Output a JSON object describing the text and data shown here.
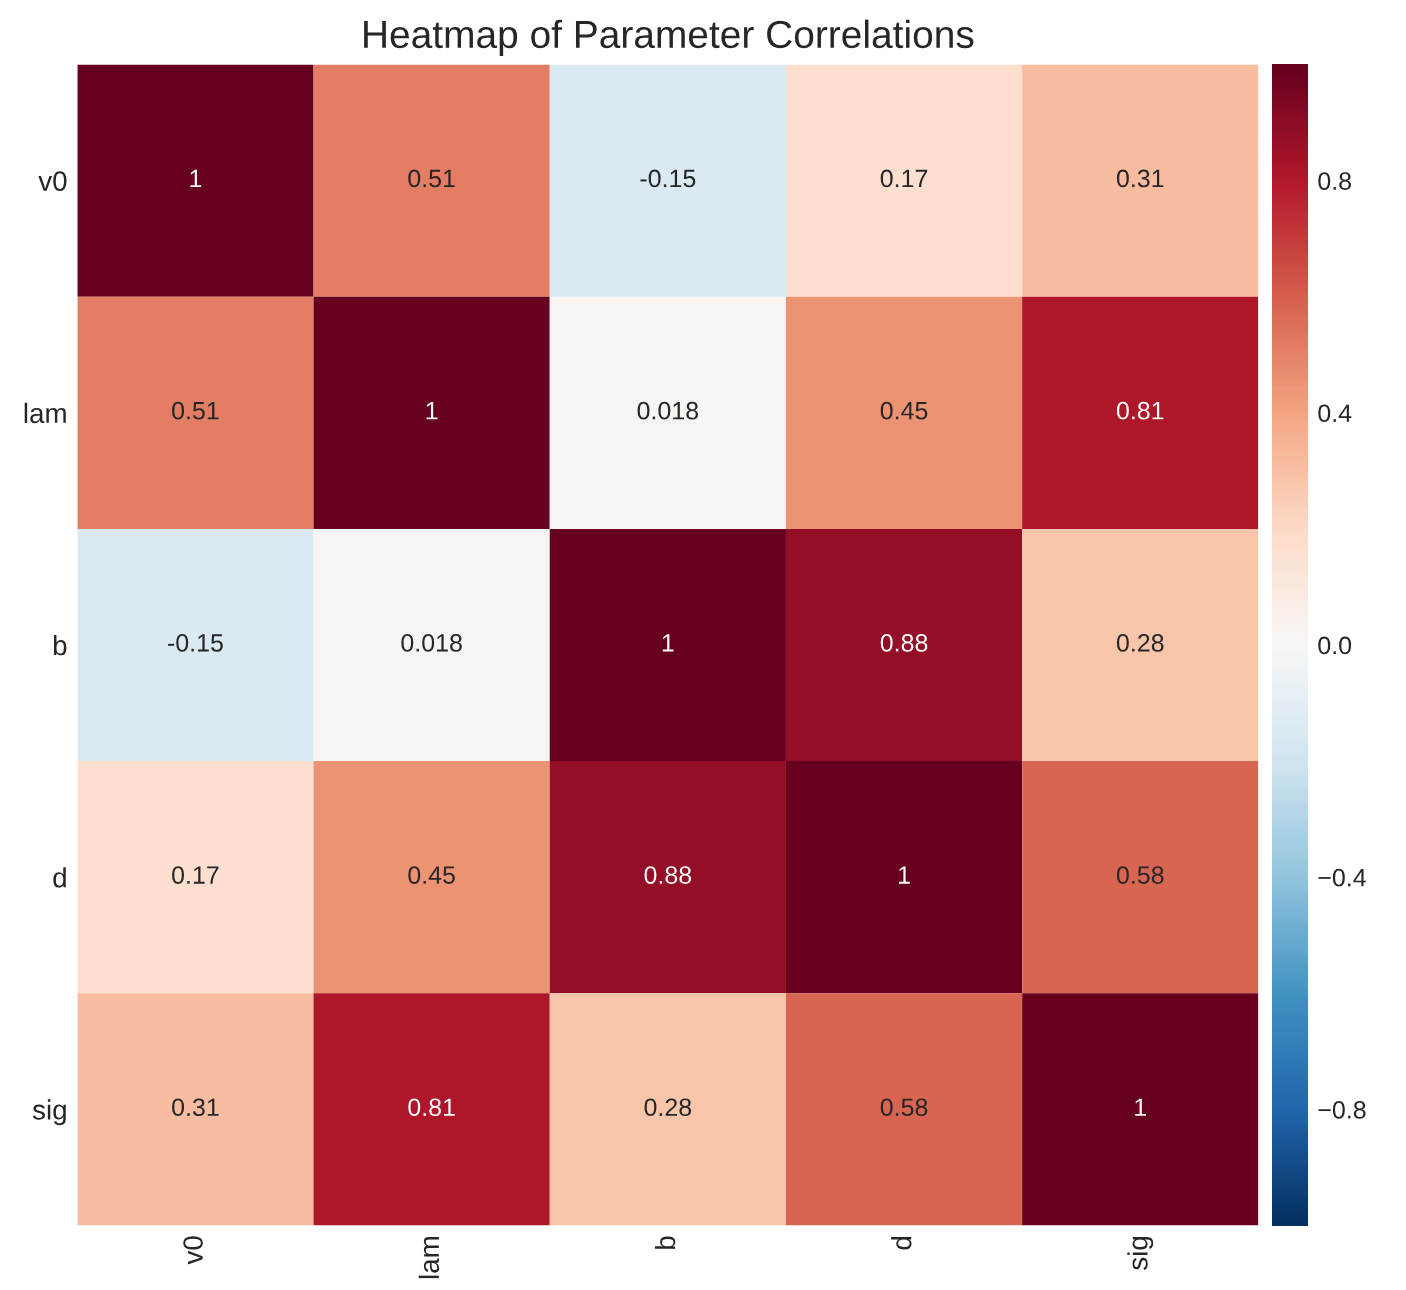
{
  "chart_data": {
    "type": "heatmap",
    "title": "Heatmap of Parameter Correlations",
    "categories": [
      "v0",
      "lam",
      "b",
      "d",
      "sig"
    ],
    "y_categories": [
      "v0",
      "lam",
      "b",
      "d",
      "sig"
    ],
    "cells": [
      [
        1,
        0.51,
        -0.15,
        0.17,
        0.31
      ],
      [
        0.51,
        1,
        0.018,
        0.45,
        0.81
      ],
      [
        -0.15,
        0.018,
        1,
        0.88,
        0.28
      ],
      [
        0.17,
        0.45,
        0.88,
        1,
        0.58
      ],
      [
        0.31,
        0.81,
        0.28,
        0.58,
        1
      ]
    ],
    "data_labels": true,
    "clim": [
      -1,
      1
    ],
    "cticks": [
      {
        "value": -0.8,
        "label": "−0.8"
      },
      {
        "value": -0.4,
        "label": "−0.4"
      },
      {
        "value": 0,
        "label": "0.0"
      },
      {
        "value": 0.4,
        "label": "0.4"
      },
      {
        "value": 0.8,
        "label": "0.8"
      }
    ]
  }
}
